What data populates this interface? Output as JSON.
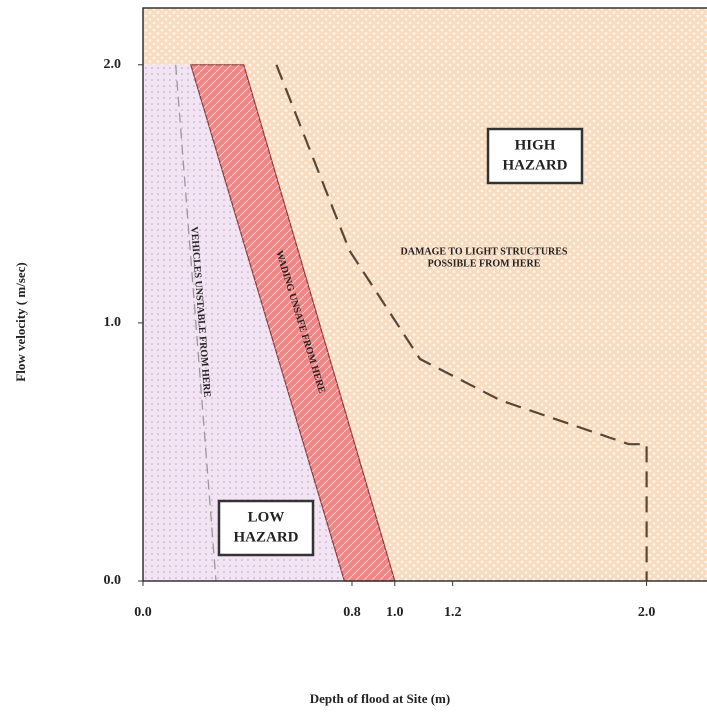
{
  "chart_data": {
    "type": "area",
    "xlabel": "Depth of flood at Site (m)",
    "ylabel": "Flow velocity ( m/sec)",
    "xlim": [
      0,
      2.24
    ],
    "ylim": [
      0,
      2.22
    ],
    "xticks": [
      {
        "value": 0,
        "label": "0.0"
      },
      {
        "value": 0.83,
        "label": "0.8"
      },
      {
        "value": 1.0,
        "label": "1.0"
      },
      {
        "value": 1.23,
        "label": "1.2"
      },
      {
        "value": 2.0,
        "label": "2.0"
      }
    ],
    "yticks": [
      {
        "value": 0,
        "label": "0.0"
      },
      {
        "value": 1.0,
        "label": "1.0"
      },
      {
        "value": 2.0,
        "label": "2.0"
      }
    ],
    "regions": [
      {
        "color": "#f9dcc0",
        "x": [
          0,
          0,
          2.24,
          2.24,
          1.0,
          0.4
        ],
        "y": [
          2.0,
          2.22,
          2.22,
          0,
          0,
          2.0
        ]
      },
      {
        "color": "#f3e4f3",
        "x": [
          0,
          0,
          0.19,
          0.8
        ],
        "y": [
          0,
          2.0,
          2.0,
          0
        ]
      },
      {
        "color": "#f08585",
        "x": [
          0.19,
          0.4,
          1.0,
          0.8
        ],
        "y": [
          2.0,
          2.0,
          0,
          0
        ]
      }
    ],
    "lines": [
      {
        "color": "#999999",
        "dash": true,
        "x": [
          0.13,
          0.29
        ],
        "y": [
          2.0,
          0
        ]
      },
      {
        "color": "#5a4636",
        "dash": true,
        "x": [
          0.53,
          0.82,
          1.1,
          1.42,
          1.93,
          2.0,
          2.0
        ],
        "y": [
          2.0,
          1.28,
          0.86,
          0.7,
          0.53,
          0.53,
          0
        ]
      }
    ],
    "annotations": [
      {
        "lines": [
          "HIGH",
          "HAZARD"
        ],
        "box": true
      },
      {
        "lines": [
          "LOW",
          "HAZARD"
        ],
        "box": true
      },
      {
        "lines": [
          "DAMAGE TO LIGHT STRUCTURES",
          "POSSIBLE FROM HERE"
        ],
        "box": false
      },
      {
        "lines": [
          "VEHICLES UNSTABLE FROM HERE"
        ],
        "box": false
      },
      {
        "lines": [
          "WADING UNSAFE FROM HERE"
        ],
        "box": false
      }
    ]
  }
}
